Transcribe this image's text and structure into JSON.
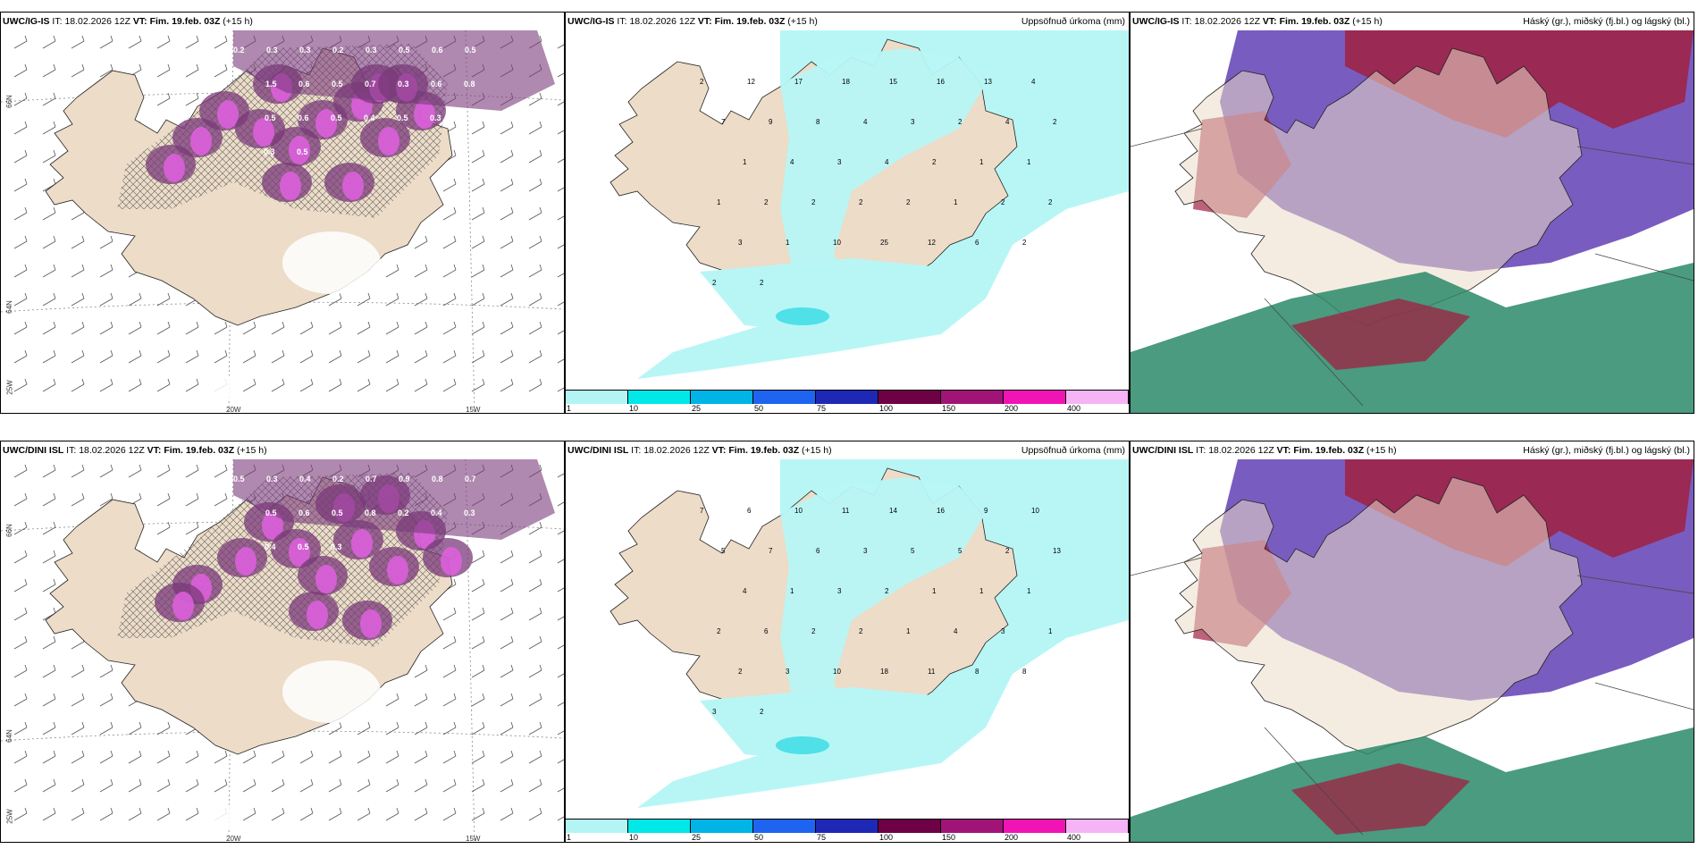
{
  "panels": [
    {
      "model": "UWC/IG-IS",
      "it_label": "IT:",
      "it": "18.02.2026 12Z",
      "vt_label": "VT:",
      "vt": "Fim. 19.feb. 03Z",
      "lead": "(+15 h)",
      "right_title": ""
    },
    {
      "model": "UWC/IG-IS",
      "it_label": "IT:",
      "it": "18.02.2026 12Z",
      "vt_label": "VT:",
      "vt": "Fim. 19.feb. 03Z",
      "lead": "(+15 h)",
      "right_title": "Uppsöfnuð úrkoma (mm)"
    },
    {
      "model": "UWC/IG-IS",
      "it_label": "IT:",
      "it": "18.02.2026 12Z",
      "vt_label": "VT:",
      "vt": "Fim. 19.feb. 03Z",
      "lead": "(+15 h)",
      "right_title": "Háský (gr.), miðský (fj.bl.) og lágský (bl.)"
    },
    {
      "model": "UWC/DINI ISL",
      "it_label": "IT:",
      "it": "18.02.2026 12Z",
      "vt_label": "VT:",
      "vt": "Fim. 19.feb. 03Z",
      "lead": "(+15 h)",
      "right_title": ""
    },
    {
      "model": "UWC/DINI ISL",
      "it_label": "IT:",
      "it": "18.02.2026 12Z",
      "vt_label": "VT:",
      "vt": "Fim. 19.feb. 03Z",
      "lead": "(+15 h)",
      "right_title": "Uppsöfnuð úrkoma (mm)"
    },
    {
      "model": "UWC/DINI ISL",
      "it_label": "IT:",
      "it": "18.02.2026 12Z",
      "vt_label": "VT:",
      "vt": "Fim. 19.feb. 03Z",
      "lead": "(+15 h)",
      "right_title": "Háský (gr.), miðský (fj.bl.) og lágský (bl.)"
    }
  ],
  "axis_labels": {
    "lat66": "66N",
    "lat64": "64N",
    "lon25": "25W",
    "lon20": "20W",
    "lon15": "15W"
  },
  "precip_colorbar": {
    "labels": [
      "1",
      "10",
      "25",
      "50",
      "75",
      "100",
      "150",
      "200",
      "400"
    ],
    "colors": [
      "#b3f5f5",
      "#00e8e8",
      "#00b4e6",
      "#1e64f0",
      "#1e28b4",
      "#6e0046",
      "#a01478",
      "#f014b4",
      "#f5b4f5"
    ]
  },
  "colors": {
    "land": "#ecdcc8",
    "ocean": "#ffffff",
    "precip_light": "#b8f6f6",
    "precip_mid": "#4fe0e8",
    "snow_purple": "#7a3a7a",
    "snow_magenta": "#e060e0",
    "cloud_high": "#6a4ab8",
    "cloud_mid": "#a02040",
    "cloud_low": "#2a8a6a"
  },
  "precip_values_top": [
    "2",
    "12",
    "17",
    "18",
    "15",
    "16",
    "13",
    "4",
    "7",
    "9",
    "8",
    "4",
    "3",
    "2",
    "4",
    "2",
    "1",
    "4",
    "3",
    "4",
    "2",
    "1",
    "1",
    "1",
    "2",
    "2",
    "2",
    "2",
    "1",
    "2",
    "2",
    "3",
    "1",
    "10",
    "25",
    "12",
    "6",
    "2",
    "2",
    "2"
  ],
  "precip_values_bottom": [
    "7",
    "6",
    "10",
    "11",
    "14",
    "16",
    "9",
    "10",
    "5",
    "7",
    "6",
    "3",
    "5",
    "5",
    "2",
    "13",
    "4",
    "1",
    "3",
    "2",
    "1",
    "1",
    "1",
    "2",
    "6",
    "2",
    "2",
    "1",
    "4",
    "3",
    "1",
    "2",
    "3",
    "10",
    "18",
    "11",
    "8",
    "8",
    "3",
    "2"
  ],
  "snow_values_top": [
    "0.2",
    "0.3",
    "0.3",
    "0.2",
    "0.3",
    "0.5",
    "0.6",
    "0.5",
    "1.5",
    "0.6",
    "0.5",
    "0.7",
    "0.3",
    "0.6",
    "0.8",
    "0.5",
    "0.6",
    "0.5",
    "0.4",
    "0.5",
    "0.3",
    "0.4",
    "0.3",
    "0.5"
  ],
  "snow_values_bottom": [
    "0.5",
    "0.3",
    "0.4",
    "0.2",
    "0.7",
    "0.9",
    "0.8",
    "0.7",
    "0.5",
    "0.6",
    "0.5",
    "0.8",
    "0.2",
    "0.4",
    "0.3",
    "0.4",
    "0.5",
    "0.3"
  ]
}
